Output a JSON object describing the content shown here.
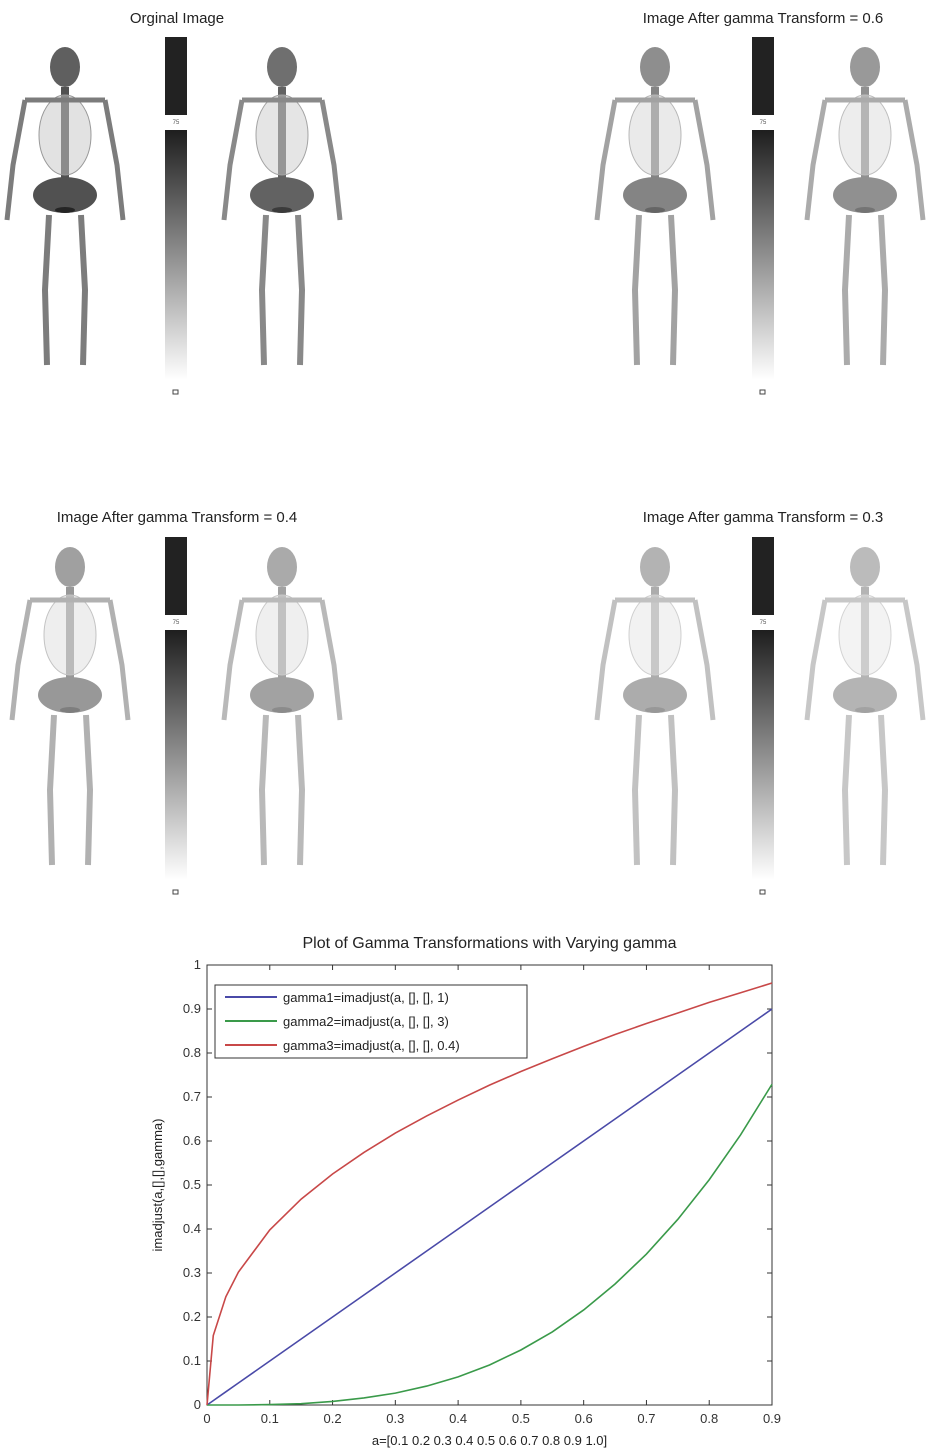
{
  "panels": [
    {
      "title": "Orginal Image",
      "colorbar_label": "75"
    },
    {
      "title": "Image After gamma Transform = 0.6",
      "colorbar_label": "75"
    },
    {
      "title": "Image After gamma Transform = 0.4",
      "colorbar_label": "75"
    },
    {
      "title": "Image After gamma Transform = 0.3",
      "colorbar_label": "75"
    }
  ],
  "chart_data": {
    "type": "line",
    "title": "Plot of Gamma Transformations with Varying gamma",
    "x_label": "a=[0.1 0.2 0.3 0.4 0.5 0.6 0.7 0.8 0.9 1.0]",
    "y_label": "imadjust(a,[],[],gamma)",
    "x": [
      0,
      0.01,
      0.03,
      0.05,
      0.1,
      0.15,
      0.2,
      0.25,
      0.3,
      0.35,
      0.4,
      0.45,
      0.5,
      0.55,
      0.6,
      0.65,
      0.7,
      0.75,
      0.8,
      0.85,
      0.9
    ],
    "series": [
      {
        "name": "gamma1=imadjust(a, [], [], 1)",
        "color": "#4a4aa8",
        "values": [
          0,
          0.01,
          0.03,
          0.05,
          0.1,
          0.15,
          0.2,
          0.25,
          0.3,
          0.35,
          0.4,
          0.45,
          0.5,
          0.55,
          0.6,
          0.65,
          0.7,
          0.75,
          0.8,
          0.85,
          0.9
        ]
      },
      {
        "name": "gamma2=imadjust(a, [], [], 3)",
        "color": "#3a9a4a",
        "values": [
          0,
          0,
          0,
          0,
          0.001,
          0.003,
          0.008,
          0.016,
          0.027,
          0.043,
          0.064,
          0.091,
          0.125,
          0.166,
          0.216,
          0.275,
          0.343,
          0.422,
          0.512,
          0.614,
          0.729
        ]
      },
      {
        "name": "gamma3=imadjust(a, [], [], 0.4)",
        "color": "#c84848",
        "values": [
          0,
          0.158,
          0.246,
          0.302,
          0.398,
          0.468,
          0.525,
          0.574,
          0.618,
          0.657,
          0.693,
          0.727,
          0.758,
          0.787,
          0.815,
          0.842,
          0.867,
          0.891,
          0.915,
          0.937,
          0.959
        ]
      }
    ],
    "xlim": [
      0,
      0.9
    ],
    "ylim": [
      0,
      1
    ],
    "xticks": [
      0,
      0.1,
      0.2,
      0.3,
      0.4,
      0.5,
      0.6,
      0.7,
      0.8,
      0.9
    ],
    "yticks": [
      0,
      0.1,
      0.2,
      0.3,
      0.4,
      0.5,
      0.6,
      0.7,
      0.8,
      0.9,
      1
    ],
    "legend": "upper-left",
    "grid": false
  }
}
